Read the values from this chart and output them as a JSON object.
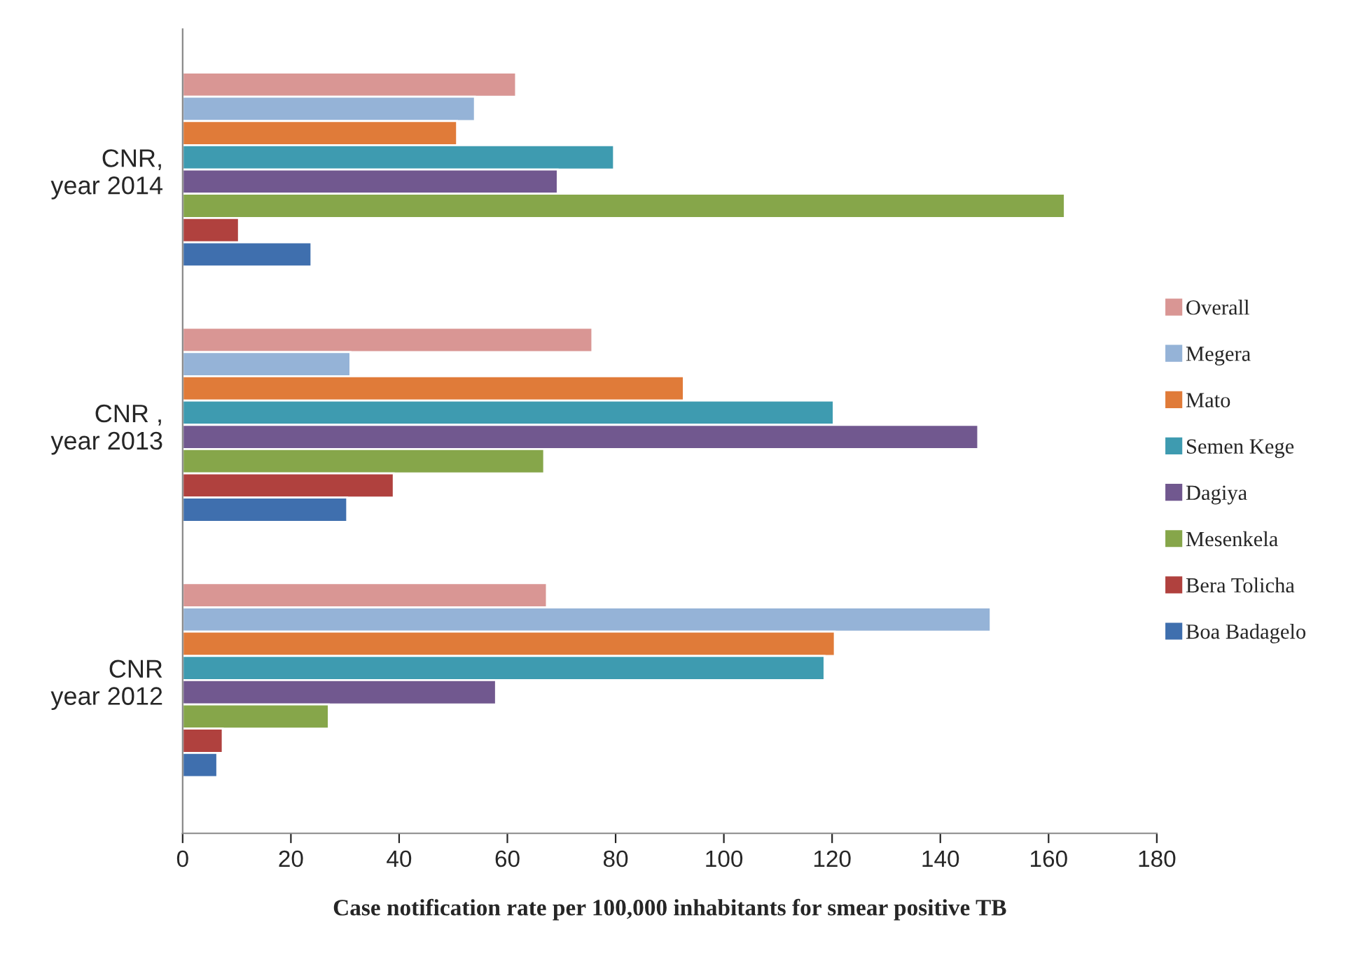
{
  "chart_data": {
    "type": "bar",
    "orientation": "horizontal",
    "xlabel": "Case notification rate per 100,000 inhabitants for smear positive TB",
    "categories": [
      "CNR,\nyear 2014",
      "CNR ,\nyear 2013",
      "CNR\nyear 2012"
    ],
    "series": [
      {
        "name": "Overall",
        "color": "#d99694",
        "values": [
          61.6,
          75.7,
          67.3
        ]
      },
      {
        "name": "Megera",
        "color": "#95b3d7",
        "values": [
          54,
          31,
          149.3
        ]
      },
      {
        "name": "Mato",
        "color": "#e07b39",
        "values": [
          50.7,
          92.6,
          120.5
        ]
      },
      {
        "name": "Semen Kege",
        "color": "#3e9bb0",
        "values": [
          79.7,
          120.3,
          118.6
        ]
      },
      {
        "name": "Dagiya",
        "color": "#71588f",
        "values": [
          69.3,
          147,
          57.9
        ]
      },
      {
        "name": "Mesenkela",
        "color": "#86a64a",
        "values": [
          163,
          66.8,
          27
        ]
      },
      {
        "name": "Bera Tolicha",
        "color": "#b0413e",
        "values": [
          10.4,
          39,
          7.4
        ]
      },
      {
        "name": "Boa Badagelo",
        "color": "#3f6fae",
        "values": [
          23.8,
          30.4,
          6.4
        ]
      }
    ],
    "xlim": [
      0,
      180
    ],
    "xticks": [
      0,
      20,
      40,
      60,
      80,
      100,
      120,
      140,
      160,
      180
    ],
    "grid": false,
    "legend": "right"
  }
}
